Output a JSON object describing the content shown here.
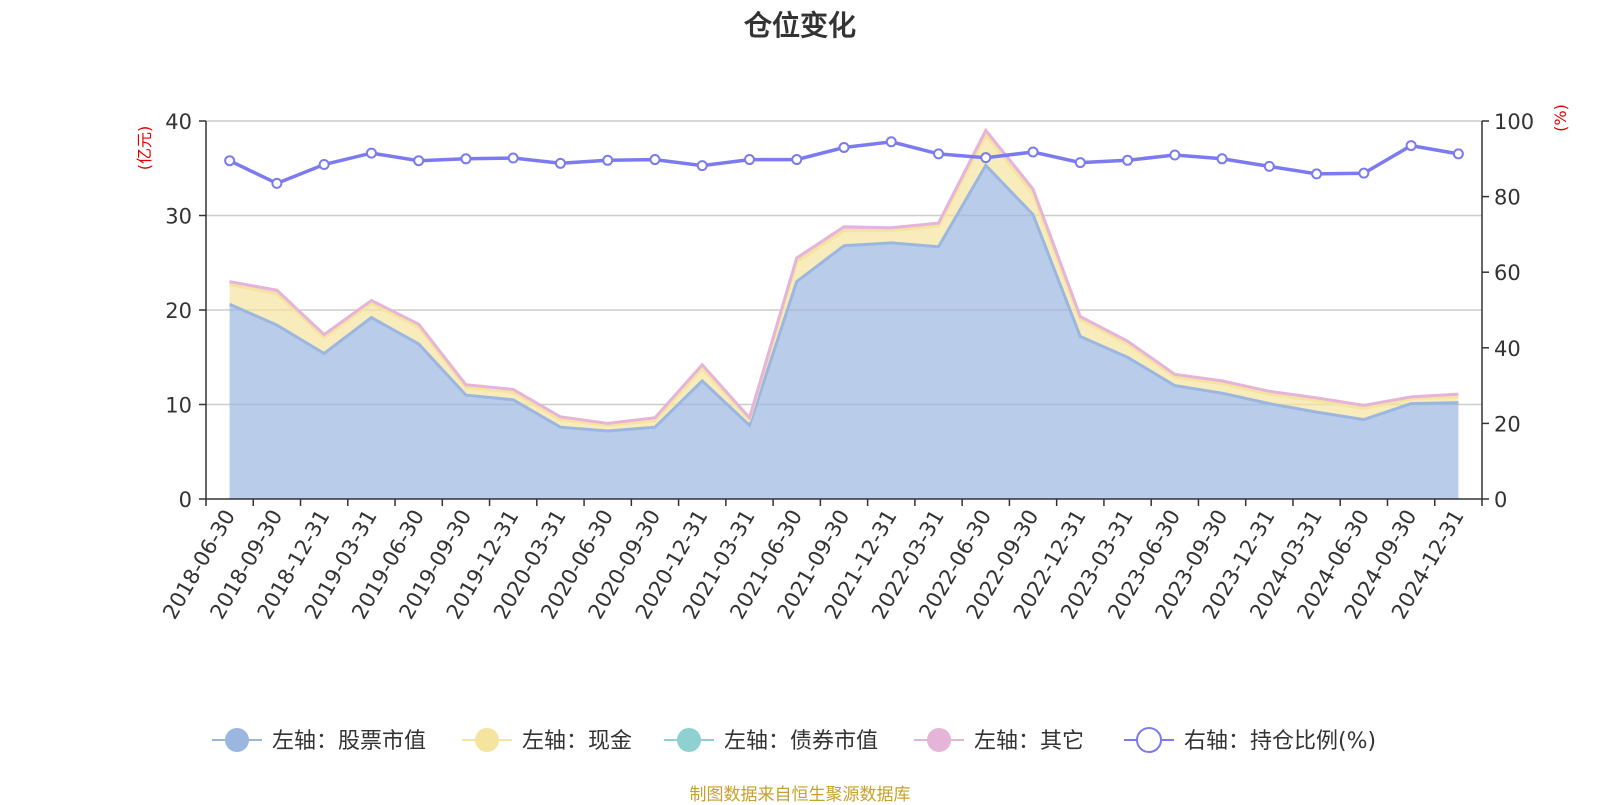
{
  "chart_data": {
    "type": "area",
    "title": "仓位变化",
    "source": "制图数据来自恒生聚源数据库",
    "left_axis": {
      "unit_label": "(亿元)",
      "ylim": [
        0,
        40
      ],
      "ticks": [
        "0",
        "10",
        "20",
        "30",
        "40"
      ]
    },
    "right_axis": {
      "unit_label": "(%)",
      "ylim": [
        0,
        100
      ],
      "ticks": [
        "0",
        "20",
        "40",
        "60",
        "80",
        "100"
      ]
    },
    "grid": true,
    "legend_position": "bottom",
    "x": [
      "2018-06-30",
      "2018-09-30",
      "2018-12-31",
      "2019-03-31",
      "2019-06-30",
      "2019-09-30",
      "2019-12-31",
      "2020-03-31",
      "2020-06-30",
      "2020-09-30",
      "2020-12-31",
      "2021-03-31",
      "2021-06-30",
      "2021-09-30",
      "2021-12-31",
      "2022-03-31",
      "2022-06-30",
      "2022-09-30",
      "2022-12-31",
      "2023-03-31",
      "2023-06-30",
      "2023-09-30",
      "2023-12-31",
      "2024-03-31",
      "2024-06-30",
      "2024-09-30",
      "2024-12-31"
    ],
    "series": [
      {
        "name": "左轴：股票市值",
        "axis": "left",
        "color": "#9bb7e0",
        "values": [
          20.6,
          18.4,
          15.4,
          19.2,
          16.4,
          11.0,
          10.5,
          7.6,
          7.2,
          7.6,
          12.5,
          7.8,
          23.0,
          26.8,
          27.1,
          26.7,
          35.3,
          30.1,
          17.2,
          15.0,
          12.0,
          11.2,
          10.1,
          9.2,
          8.4,
          10.1,
          10.2
        ]
      },
      {
        "name": "左轴：现金",
        "axis": "left",
        "color": "#f5e3a0",
        "values": [
          2.1,
          3.3,
          1.7,
          1.5,
          1.8,
          0.8,
          0.8,
          0.8,
          0.6,
          0.7,
          1.3,
          0.6,
          2.1,
          1.6,
          1.3,
          2.2,
          3.2,
          2.2,
          1.8,
          1.4,
          0.9,
          1.0,
          1.0,
          1.2,
          1.2,
          0.5,
          0.6
        ]
      },
      {
        "name": "左轴：债券市值",
        "axis": "left",
        "color": "#8fd0d0",
        "values": [
          0,
          0,
          0,
          0,
          0,
          0,
          0,
          0,
          0,
          0,
          0,
          0,
          0,
          0,
          0,
          0,
          0,
          0,
          0,
          0,
          0,
          0,
          0,
          0,
          0,
          0,
          0
        ]
      },
      {
        "name": "左轴：其它",
        "axis": "left",
        "color": "#e6b3d9",
        "values": [
          0.3,
          0.4,
          0.3,
          0.3,
          0.3,
          0.3,
          0.3,
          0.3,
          0.2,
          0.3,
          0.4,
          0.2,
          0.4,
          0.4,
          0.3,
          0.3,
          0.5,
          0.5,
          0.3,
          0.3,
          0.3,
          0.3,
          0.3,
          0.3,
          0.3,
          0.2,
          0.3
        ]
      },
      {
        "name": "右轴：持仓比例(%)",
        "axis": "right",
        "color": "#7b7bef",
        "values": [
          89.5,
          83.5,
          88.5,
          91.5,
          89.5,
          90.0,
          90.2,
          88.8,
          89.6,
          89.8,
          88.2,
          89.8,
          89.8,
          93.0,
          94.5,
          91.3,
          90.3,
          91.8,
          89.0,
          89.6,
          91.0,
          90.0,
          88.0,
          86.0,
          86.2,
          93.5,
          91.3
        ]
      }
    ]
  }
}
